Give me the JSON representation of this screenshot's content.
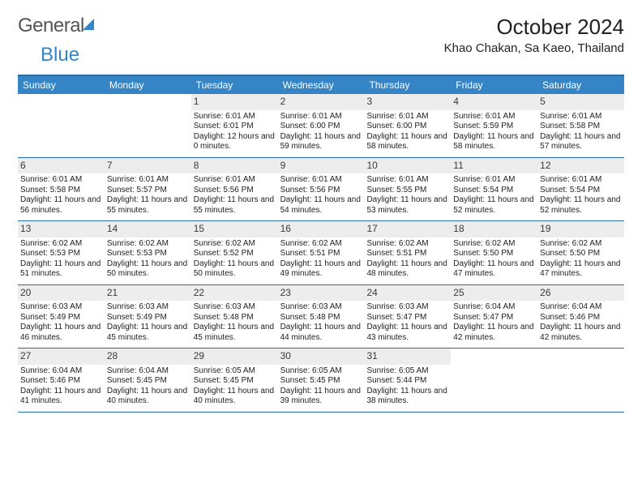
{
  "brand": {
    "general": "General",
    "blue": "Blue"
  },
  "title": "October 2024",
  "location": "Khao Chakan, Sa Kaeo, Thailand",
  "colors": {
    "header_bg": "#3484c6",
    "header_text": "#ffffff",
    "border": "#2b6ca3",
    "daynum_bg": "#ededed",
    "text": "#222222",
    "logo_gray": "#555555"
  },
  "dayNames": [
    "Sunday",
    "Monday",
    "Tuesday",
    "Wednesday",
    "Thursday",
    "Friday",
    "Saturday"
  ],
  "weeks": [
    [
      null,
      null,
      {
        "n": "1",
        "sunrise": "Sunrise: 6:01 AM",
        "sunset": "Sunset: 6:01 PM",
        "daylight": "Daylight: 12 hours and 0 minutes."
      },
      {
        "n": "2",
        "sunrise": "Sunrise: 6:01 AM",
        "sunset": "Sunset: 6:00 PM",
        "daylight": "Daylight: 11 hours and 59 minutes."
      },
      {
        "n": "3",
        "sunrise": "Sunrise: 6:01 AM",
        "sunset": "Sunset: 6:00 PM",
        "daylight": "Daylight: 11 hours and 58 minutes."
      },
      {
        "n": "4",
        "sunrise": "Sunrise: 6:01 AM",
        "sunset": "Sunset: 5:59 PM",
        "daylight": "Daylight: 11 hours and 58 minutes."
      },
      {
        "n": "5",
        "sunrise": "Sunrise: 6:01 AM",
        "sunset": "Sunset: 5:58 PM",
        "daylight": "Daylight: 11 hours and 57 minutes."
      }
    ],
    [
      {
        "n": "6",
        "sunrise": "Sunrise: 6:01 AM",
        "sunset": "Sunset: 5:58 PM",
        "daylight": "Daylight: 11 hours and 56 minutes."
      },
      {
        "n": "7",
        "sunrise": "Sunrise: 6:01 AM",
        "sunset": "Sunset: 5:57 PM",
        "daylight": "Daylight: 11 hours and 55 minutes."
      },
      {
        "n": "8",
        "sunrise": "Sunrise: 6:01 AM",
        "sunset": "Sunset: 5:56 PM",
        "daylight": "Daylight: 11 hours and 55 minutes."
      },
      {
        "n": "9",
        "sunrise": "Sunrise: 6:01 AM",
        "sunset": "Sunset: 5:56 PM",
        "daylight": "Daylight: 11 hours and 54 minutes."
      },
      {
        "n": "10",
        "sunrise": "Sunrise: 6:01 AM",
        "sunset": "Sunset: 5:55 PM",
        "daylight": "Daylight: 11 hours and 53 minutes."
      },
      {
        "n": "11",
        "sunrise": "Sunrise: 6:01 AM",
        "sunset": "Sunset: 5:54 PM",
        "daylight": "Daylight: 11 hours and 52 minutes."
      },
      {
        "n": "12",
        "sunrise": "Sunrise: 6:01 AM",
        "sunset": "Sunset: 5:54 PM",
        "daylight": "Daylight: 11 hours and 52 minutes."
      }
    ],
    [
      {
        "n": "13",
        "sunrise": "Sunrise: 6:02 AM",
        "sunset": "Sunset: 5:53 PM",
        "daylight": "Daylight: 11 hours and 51 minutes."
      },
      {
        "n": "14",
        "sunrise": "Sunrise: 6:02 AM",
        "sunset": "Sunset: 5:53 PM",
        "daylight": "Daylight: 11 hours and 50 minutes."
      },
      {
        "n": "15",
        "sunrise": "Sunrise: 6:02 AM",
        "sunset": "Sunset: 5:52 PM",
        "daylight": "Daylight: 11 hours and 50 minutes."
      },
      {
        "n": "16",
        "sunrise": "Sunrise: 6:02 AM",
        "sunset": "Sunset: 5:51 PM",
        "daylight": "Daylight: 11 hours and 49 minutes."
      },
      {
        "n": "17",
        "sunrise": "Sunrise: 6:02 AM",
        "sunset": "Sunset: 5:51 PM",
        "daylight": "Daylight: 11 hours and 48 minutes."
      },
      {
        "n": "18",
        "sunrise": "Sunrise: 6:02 AM",
        "sunset": "Sunset: 5:50 PM",
        "daylight": "Daylight: 11 hours and 47 minutes."
      },
      {
        "n": "19",
        "sunrise": "Sunrise: 6:02 AM",
        "sunset": "Sunset: 5:50 PM",
        "daylight": "Daylight: 11 hours and 47 minutes."
      }
    ],
    [
      {
        "n": "20",
        "sunrise": "Sunrise: 6:03 AM",
        "sunset": "Sunset: 5:49 PM",
        "daylight": "Daylight: 11 hours and 46 minutes."
      },
      {
        "n": "21",
        "sunrise": "Sunrise: 6:03 AM",
        "sunset": "Sunset: 5:49 PM",
        "daylight": "Daylight: 11 hours and 45 minutes."
      },
      {
        "n": "22",
        "sunrise": "Sunrise: 6:03 AM",
        "sunset": "Sunset: 5:48 PM",
        "daylight": "Daylight: 11 hours and 45 minutes."
      },
      {
        "n": "23",
        "sunrise": "Sunrise: 6:03 AM",
        "sunset": "Sunset: 5:48 PM",
        "daylight": "Daylight: 11 hours and 44 minutes."
      },
      {
        "n": "24",
        "sunrise": "Sunrise: 6:03 AM",
        "sunset": "Sunset: 5:47 PM",
        "daylight": "Daylight: 11 hours and 43 minutes."
      },
      {
        "n": "25",
        "sunrise": "Sunrise: 6:04 AM",
        "sunset": "Sunset: 5:47 PM",
        "daylight": "Daylight: 11 hours and 42 minutes."
      },
      {
        "n": "26",
        "sunrise": "Sunrise: 6:04 AM",
        "sunset": "Sunset: 5:46 PM",
        "daylight": "Daylight: 11 hours and 42 minutes."
      }
    ],
    [
      {
        "n": "27",
        "sunrise": "Sunrise: 6:04 AM",
        "sunset": "Sunset: 5:46 PM",
        "daylight": "Daylight: 11 hours and 41 minutes."
      },
      {
        "n": "28",
        "sunrise": "Sunrise: 6:04 AM",
        "sunset": "Sunset: 5:45 PM",
        "daylight": "Daylight: 11 hours and 40 minutes."
      },
      {
        "n": "29",
        "sunrise": "Sunrise: 6:05 AM",
        "sunset": "Sunset: 5:45 PM",
        "daylight": "Daylight: 11 hours and 40 minutes."
      },
      {
        "n": "30",
        "sunrise": "Sunrise: 6:05 AM",
        "sunset": "Sunset: 5:45 PM",
        "daylight": "Daylight: 11 hours and 39 minutes."
      },
      {
        "n": "31",
        "sunrise": "Sunrise: 6:05 AM",
        "sunset": "Sunset: 5:44 PM",
        "daylight": "Daylight: 11 hours and 38 minutes."
      },
      null,
      null
    ]
  ]
}
